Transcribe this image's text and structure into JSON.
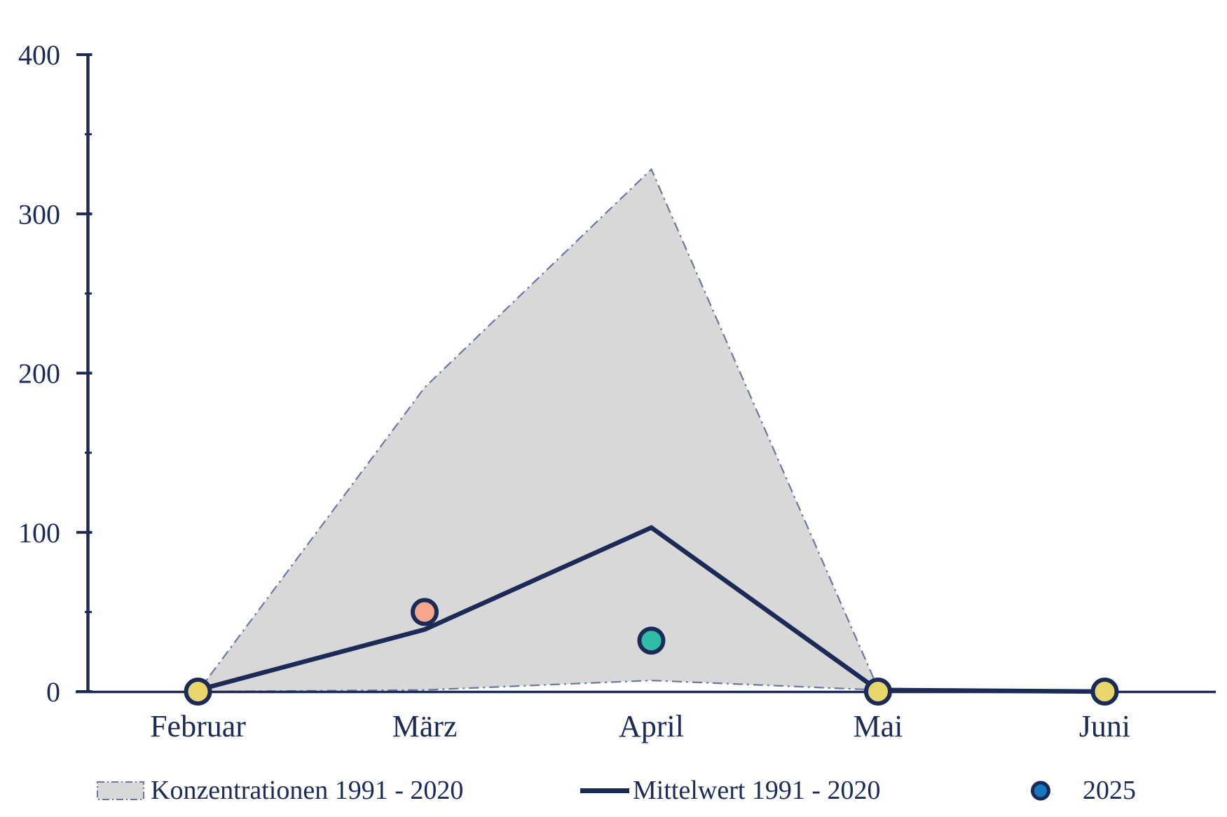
{
  "chart_data": {
    "type": "area",
    "title": "",
    "xlabel": "",
    "ylabel": "",
    "categories": [
      "Februar",
      "März",
      "April",
      "Mai",
      "Juni"
    ],
    "y_axis": {
      "min": 0,
      "max": 400,
      "major_ticks": [
        {
          "value": 0,
          "label": "0"
        },
        {
          "value": 100,
          "label": "100"
        },
        {
          "value": 200,
          "label": "200"
        },
        {
          "value": 300,
          "label": "300"
        },
        {
          "value": 400,
          "label": "400"
        }
      ],
      "minor_ticks": [
        50,
        150,
        250,
        350
      ]
    },
    "grid": false,
    "legend_position": "bottom",
    "series": [
      {
        "name": "Konzentrationen 1991 - 2020",
        "type": "band",
        "upper": [
          0,
          191,
          328,
          2,
          0
        ],
        "lower": [
          0,
          1,
          7,
          1,
          0
        ]
      },
      {
        "name": "Mittelwert 1991 - 2020",
        "type": "line",
        "values": [
          1,
          39,
          103,
          1,
          0
        ]
      },
      {
        "name": "2025",
        "type": "points",
        "values": [
          0,
          50,
          32,
          0,
          0
        ],
        "point_colors": [
          "#e8d66b",
          "#f5a78e",
          "#2fbda7",
          "#e8d66b",
          "#e8d66b"
        ]
      }
    ],
    "legend": [
      {
        "label": "Konzentrationen 1991 - 2020",
        "swatch": "band"
      },
      {
        "label": "Mittelwert 1991 - 2020",
        "swatch": "line"
      },
      {
        "label": "2025",
        "swatch": "dot"
      }
    ]
  },
  "colors": {
    "navy": "#1b2a56",
    "band_fill": "#d8d8d8",
    "band_edge": "#6c77a0",
    "dot_yellow": "#e8d66b",
    "dot_salmon": "#f5a78e",
    "dot_teal": "#2fbda7",
    "legend_dot_blue": "#1878be"
  }
}
